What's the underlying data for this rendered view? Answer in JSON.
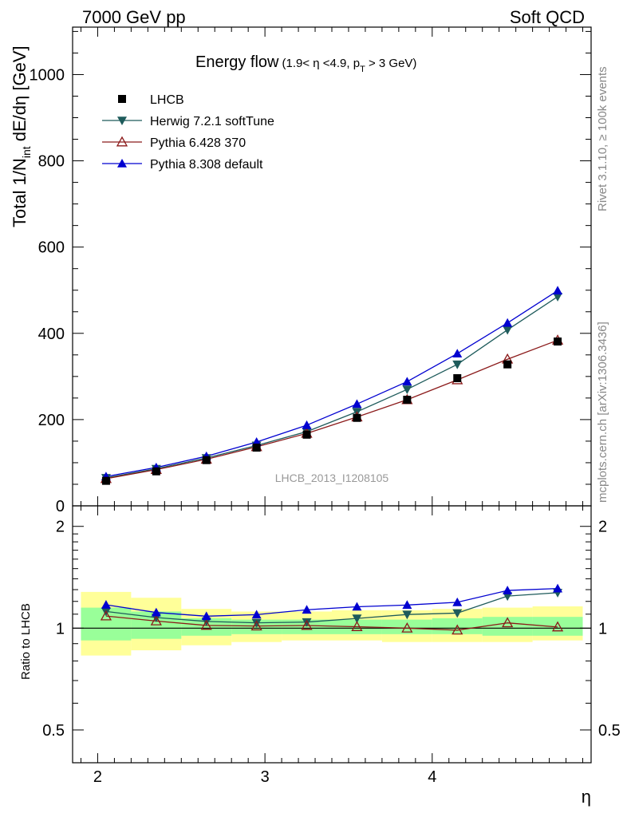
{
  "header": {
    "left": "7000 GeV pp",
    "right": "Soft QCD"
  },
  "side_labels": {
    "rivet": "Rivet 3.1.10, ≥ 100k events",
    "mcplots": "mcplots.cern.ch [arXiv:1306.3436]"
  },
  "watermark": "LHCB_2013_I1208105",
  "chart_data": {
    "type": "line",
    "title_main": "Energy flow",
    "title_cut_1": "(1.9< η <4.9, p",
    "title_cut_sub": "T",
    "title_cut_2": " > 3 GeV)",
    "ylabel": {
      "a": "Total 1/N",
      "a_sub": "int",
      "b": " dE/dη [GeV]"
    },
    "ratio_ylabel": "Ratio to LHCB",
    "xlabel": "η",
    "xlim": [
      1.85,
      4.95
    ],
    "ylim": [
      0,
      1110
    ],
    "ratio_ylim": [
      0.4,
      2.3
    ],
    "x_ticks": [
      {
        "value": 2,
        "label": "2"
      },
      {
        "value": 3,
        "label": "3"
      },
      {
        "value": 4,
        "label": "4"
      }
    ],
    "y_ticks": [
      {
        "value": 0,
        "label": "0"
      },
      {
        "value": 200,
        "label": "200"
      },
      {
        "value": 400,
        "label": "400"
      },
      {
        "value": 600,
        "label": "600"
      },
      {
        "value": 800,
        "label": "800"
      },
      {
        "value": 1000,
        "label": "1000"
      }
    ],
    "ratio_ticks": [
      {
        "value": 0.5,
        "label": "0.5"
      },
      {
        "value": 1,
        "label": "1"
      },
      {
        "value": 2,
        "label": "2"
      }
    ],
    "x": [
      2.05,
      2.35,
      2.65,
      2.95,
      3.25,
      3.55,
      3.85,
      4.15,
      4.45,
      4.75
    ],
    "bin_edges": [
      1.9,
      2.2,
      2.5,
      2.8,
      3.1,
      3.4,
      3.7,
      4.0,
      4.3,
      4.6,
      4.9
    ],
    "band_inner": [
      [
        0.92,
        1.15
      ],
      [
        0.93,
        1.12
      ],
      [
        0.95,
        1.07
      ],
      [
        0.96,
        1.06
      ],
      [
        0.96,
        1.06
      ],
      [
        0.96,
        1.06
      ],
      [
        0.96,
        1.06
      ],
      [
        0.96,
        1.07
      ],
      [
        0.95,
        1.08
      ],
      [
        0.95,
        1.08
      ]
    ],
    "band_outer": [
      [
        0.83,
        1.28
      ],
      [
        0.86,
        1.23
      ],
      [
        0.89,
        1.14
      ],
      [
        0.91,
        1.12
      ],
      [
        0.92,
        1.12
      ],
      [
        0.92,
        1.13
      ],
      [
        0.91,
        1.13
      ],
      [
        0.91,
        1.14
      ],
      [
        0.91,
        1.15
      ],
      [
        0.92,
        1.16
      ]
    ],
    "series": [
      {
        "name": "LHCB",
        "marker": "square",
        "color": "#000000",
        "values": [
          58,
          80,
          106,
          135,
          165,
          204,
          246,
          296,
          328,
          381
        ]
      },
      {
        "name": "Herwig 7.2.1 softTune",
        "marker": "triangle-down",
        "color": "#1e5b5b",
        "values": [
          65,
          86,
          111,
          140,
          172,
          218,
          270,
          328,
          408,
          485
        ]
      },
      {
        "name": "Pythia 6.428 370",
        "marker": "triangle-up-open",
        "color": "#8b1a1a",
        "values": [
          63,
          84,
          108,
          137,
          168,
          206,
          246,
          292,
          340,
          384
        ]
      },
      {
        "name": "Pythia 8.308 default",
        "marker": "triangle-up",
        "color": "#0000d0",
        "values": [
          68,
          89,
          115,
          148,
          187,
          236,
          288,
          353,
          424,
          499
        ]
      }
    ],
    "band_colors": {
      "inner": "#99ff99",
      "outer": "#ffff99"
    }
  }
}
